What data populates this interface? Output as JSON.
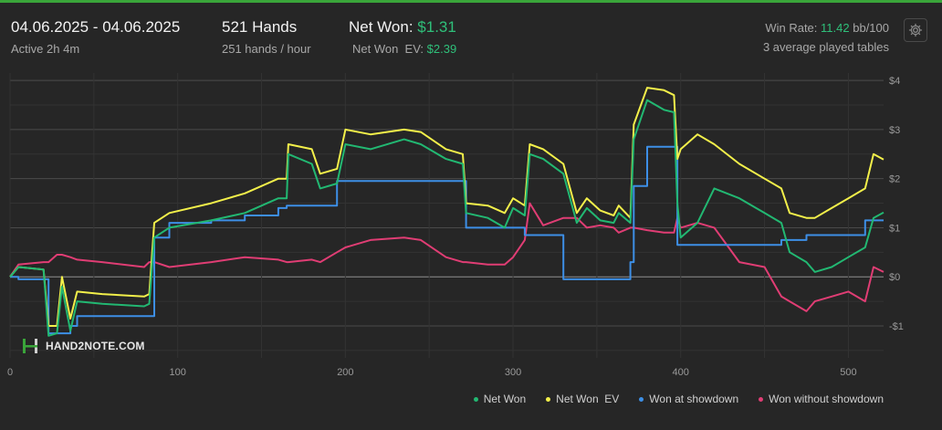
{
  "header": {
    "date_range": "04.06.2025 - 04.06.2025",
    "active": "Active 2h 4m",
    "hands_title": "521 Hands",
    "hands_rate": "251 hands / hour",
    "net_won_label": "Net Won:",
    "net_won_value": "$1.31",
    "net_won_ev_label": "Net Won  EV:",
    "net_won_ev_value": "$2.39",
    "win_rate_label": "Win Rate:",
    "win_rate_value": "11.42",
    "win_rate_unit": "bb/100",
    "tables": "3 average played tables",
    "settings_icon": "gear-icon"
  },
  "logo": {
    "text": "HAND2NOTE.COM",
    "icon": "h2n-logo-icon"
  },
  "colors": {
    "net_won": "#22b872",
    "net_won_ev": "#f3f04a",
    "showdown": "#3d8fe6",
    "no_showdown": "#e03d74",
    "accent": "#3aa53a"
  },
  "chart_data": {
    "type": "line",
    "xlim": [
      0,
      521
    ],
    "ylim": [
      -1.65,
      4.15
    ],
    "x_ticks": [
      0,
      100,
      200,
      300,
      400,
      500
    ],
    "y_ticks": [
      -1,
      0,
      1,
      2,
      3,
      4
    ],
    "y_tick_labels": [
      "-$1",
      "$0",
      "$1",
      "$2",
      "$3",
      "$4"
    ],
    "grid": true,
    "legend_position": "bottom-right",
    "series": [
      {
        "name": "Net Won",
        "key": "net_won",
        "points": [
          [
            0,
            0
          ],
          [
            5,
            0.2
          ],
          [
            20,
            0.15
          ],
          [
            23,
            -1.2
          ],
          [
            28,
            -1.15
          ],
          [
            31,
            -0.2
          ],
          [
            36,
            -1.1
          ],
          [
            40,
            -0.5
          ],
          [
            55,
            -0.55
          ],
          [
            80,
            -0.6
          ],
          [
            83,
            -0.55
          ],
          [
            86,
            0.8
          ],
          [
            95,
            1.0
          ],
          [
            120,
            1.15
          ],
          [
            140,
            1.3
          ],
          [
            160,
            1.6
          ],
          [
            165,
            1.6
          ],
          [
            166,
            2.5
          ],
          [
            180,
            2.3
          ],
          [
            185,
            1.8
          ],
          [
            195,
            1.9
          ],
          [
            200,
            2.7
          ],
          [
            215,
            2.6
          ],
          [
            235,
            2.8
          ],
          [
            245,
            2.7
          ],
          [
            260,
            2.4
          ],
          [
            270,
            2.3
          ],
          [
            272,
            1.3
          ],
          [
            285,
            1.2
          ],
          [
            295,
            1.0
          ],
          [
            300,
            1.4
          ],
          [
            307,
            1.25
          ],
          [
            310,
            2.5
          ],
          [
            318,
            2.4
          ],
          [
            330,
            2.1
          ],
          [
            338,
            1.1
          ],
          [
            344,
            1.4
          ],
          [
            352,
            1.15
          ],
          [
            360,
            1.1
          ],
          [
            363,
            1.3
          ],
          [
            370,
            1.1
          ],
          [
            372,
            2.8
          ],
          [
            380,
            3.6
          ],
          [
            390,
            3.4
          ],
          [
            396,
            3.35
          ],
          [
            398,
            1.5
          ],
          [
            400,
            0.8
          ],
          [
            410,
            1.1
          ],
          [
            420,
            1.8
          ],
          [
            435,
            1.6
          ],
          [
            450,
            1.3
          ],
          [
            460,
            1.1
          ],
          [
            465,
            0.5
          ],
          [
            475,
            0.3
          ],
          [
            480,
            0.1
          ],
          [
            490,
            0.2
          ],
          [
            500,
            0.4
          ],
          [
            510,
            0.6
          ],
          [
            515,
            1.2
          ],
          [
            521,
            1.31
          ]
        ]
      },
      {
        "name": "Net Won  EV",
        "key": "net_won_ev",
        "points": [
          [
            0,
            0
          ],
          [
            5,
            0.2
          ],
          [
            20,
            0.15
          ],
          [
            23,
            -1.0
          ],
          [
            28,
            -1.0
          ],
          [
            31,
            0.0
          ],
          [
            36,
            -0.85
          ],
          [
            40,
            -0.3
          ],
          [
            55,
            -0.35
          ],
          [
            80,
            -0.4
          ],
          [
            83,
            -0.35
          ],
          [
            86,
            1.1
          ],
          [
            95,
            1.3
          ],
          [
            120,
            1.5
          ],
          [
            140,
            1.7
          ],
          [
            160,
            2.0
          ],
          [
            165,
            2.0
          ],
          [
            166,
            2.7
          ],
          [
            180,
            2.6
          ],
          [
            185,
            2.1
          ],
          [
            195,
            2.2
          ],
          [
            200,
            3.0
          ],
          [
            215,
            2.9
          ],
          [
            235,
            3.0
          ],
          [
            245,
            2.95
          ],
          [
            260,
            2.6
          ],
          [
            270,
            2.5
          ],
          [
            272,
            1.5
          ],
          [
            285,
            1.45
          ],
          [
            295,
            1.3
          ],
          [
            300,
            1.6
          ],
          [
            307,
            1.45
          ],
          [
            310,
            2.7
          ],
          [
            318,
            2.6
          ],
          [
            330,
            2.3
          ],
          [
            338,
            1.3
          ],
          [
            344,
            1.6
          ],
          [
            352,
            1.35
          ],
          [
            360,
            1.25
          ],
          [
            363,
            1.45
          ],
          [
            370,
            1.2
          ],
          [
            372,
            3.1
          ],
          [
            380,
            3.85
          ],
          [
            390,
            3.8
          ],
          [
            396,
            3.7
          ],
          [
            398,
            2.4
          ],
          [
            400,
            2.6
          ],
          [
            410,
            2.9
          ],
          [
            420,
            2.7
          ],
          [
            435,
            2.3
          ],
          [
            450,
            2.0
          ],
          [
            460,
            1.8
          ],
          [
            465,
            1.3
          ],
          [
            475,
            1.2
          ],
          [
            480,
            1.2
          ],
          [
            490,
            1.4
          ],
          [
            500,
            1.6
          ],
          [
            510,
            1.8
          ],
          [
            515,
            2.5
          ],
          [
            521,
            2.39
          ]
        ]
      },
      {
        "name": "Won at showdown",
        "key": "showdown",
        "points": [
          [
            0,
            0
          ],
          [
            5,
            -0.05
          ],
          [
            20,
            -0.05
          ],
          [
            23,
            -1.15
          ],
          [
            28,
            -1.15
          ],
          [
            31,
            -1.15
          ],
          [
            36,
            -1.0
          ],
          [
            40,
            -0.8
          ],
          [
            55,
            -0.8
          ],
          [
            80,
            -0.8
          ],
          [
            83,
            -0.8
          ],
          [
            86,
            0.8
          ],
          [
            95,
            1.1
          ],
          [
            120,
            1.15
          ],
          [
            140,
            1.25
          ],
          [
            160,
            1.4
          ],
          [
            165,
            1.45
          ],
          [
            166,
            1.45
          ],
          [
            180,
            1.45
          ],
          [
            185,
            1.45
          ],
          [
            195,
            1.95
          ],
          [
            200,
            1.95
          ],
          [
            215,
            1.95
          ],
          [
            235,
            1.95
          ],
          [
            245,
            1.95
          ],
          [
            260,
            1.95
          ],
          [
            270,
            1.95
          ],
          [
            272,
            1.0
          ],
          [
            285,
            1.0
          ],
          [
            295,
            1.0
          ],
          [
            300,
            1.0
          ],
          [
            307,
            0.85
          ],
          [
            310,
            0.85
          ],
          [
            318,
            0.85
          ],
          [
            330,
            -0.05
          ],
          [
            338,
            -0.05
          ],
          [
            344,
            -0.05
          ],
          [
            352,
            -0.05
          ],
          [
            360,
            -0.05
          ],
          [
            363,
            -0.05
          ],
          [
            370,
            0.3
          ],
          [
            372,
            1.85
          ],
          [
            380,
            2.65
          ],
          [
            390,
            2.65
          ],
          [
            396,
            2.65
          ],
          [
            398,
            0.65
          ],
          [
            400,
            0.65
          ],
          [
            410,
            0.65
          ],
          [
            420,
            0.65
          ],
          [
            435,
            0.65
          ],
          [
            450,
            0.65
          ],
          [
            460,
            0.75
          ],
          [
            465,
            0.75
          ],
          [
            475,
            0.85
          ],
          [
            480,
            0.85
          ],
          [
            490,
            0.85
          ],
          [
            500,
            0.85
          ],
          [
            510,
            1.15
          ],
          [
            515,
            1.15
          ],
          [
            521,
            1.15
          ]
        ]
      },
      {
        "name": "Won without showdown",
        "key": "no_showdown",
        "points": [
          [
            0,
            0
          ],
          [
            5,
            0.25
          ],
          [
            20,
            0.3
          ],
          [
            23,
            0.3
          ],
          [
            28,
            0.45
          ],
          [
            31,
            0.45
          ],
          [
            36,
            0.4
          ],
          [
            40,
            0.35
          ],
          [
            55,
            0.3
          ],
          [
            80,
            0.2
          ],
          [
            83,
            0.3
          ],
          [
            86,
            0.3
          ],
          [
            95,
            0.2
          ],
          [
            120,
            0.3
          ],
          [
            140,
            0.4
          ],
          [
            160,
            0.35
          ],
          [
            165,
            0.3
          ],
          [
            166,
            0.3
          ],
          [
            180,
            0.35
          ],
          [
            185,
            0.3
          ],
          [
            195,
            0.5
          ],
          [
            200,
            0.6
          ],
          [
            215,
            0.75
          ],
          [
            235,
            0.8
          ],
          [
            245,
            0.75
          ],
          [
            260,
            0.4
          ],
          [
            270,
            0.3
          ],
          [
            272,
            0.3
          ],
          [
            285,
            0.25
          ],
          [
            295,
            0.25
          ],
          [
            300,
            0.4
          ],
          [
            307,
            0.75
          ],
          [
            310,
            1.5
          ],
          [
            318,
            1.05
          ],
          [
            330,
            1.2
          ],
          [
            338,
            1.2
          ],
          [
            344,
            1.0
          ],
          [
            352,
            1.05
          ],
          [
            360,
            1.0
          ],
          [
            363,
            0.9
          ],
          [
            370,
            1.0
          ],
          [
            372,
            1.0
          ],
          [
            380,
            0.95
          ],
          [
            390,
            0.9
          ],
          [
            396,
            0.9
          ],
          [
            398,
            1.2
          ],
          [
            400,
            1.0
          ],
          [
            410,
            1.1
          ],
          [
            420,
            1.0
          ],
          [
            435,
            0.3
          ],
          [
            450,
            0.2
          ],
          [
            460,
            -0.4
          ],
          [
            465,
            -0.5
          ],
          [
            475,
            -0.7
          ],
          [
            480,
            -0.5
          ],
          [
            490,
            -0.4
          ],
          [
            500,
            -0.3
          ],
          [
            510,
            -0.5
          ],
          [
            515,
            0.2
          ],
          [
            521,
            0.1
          ]
        ]
      }
    ]
  }
}
